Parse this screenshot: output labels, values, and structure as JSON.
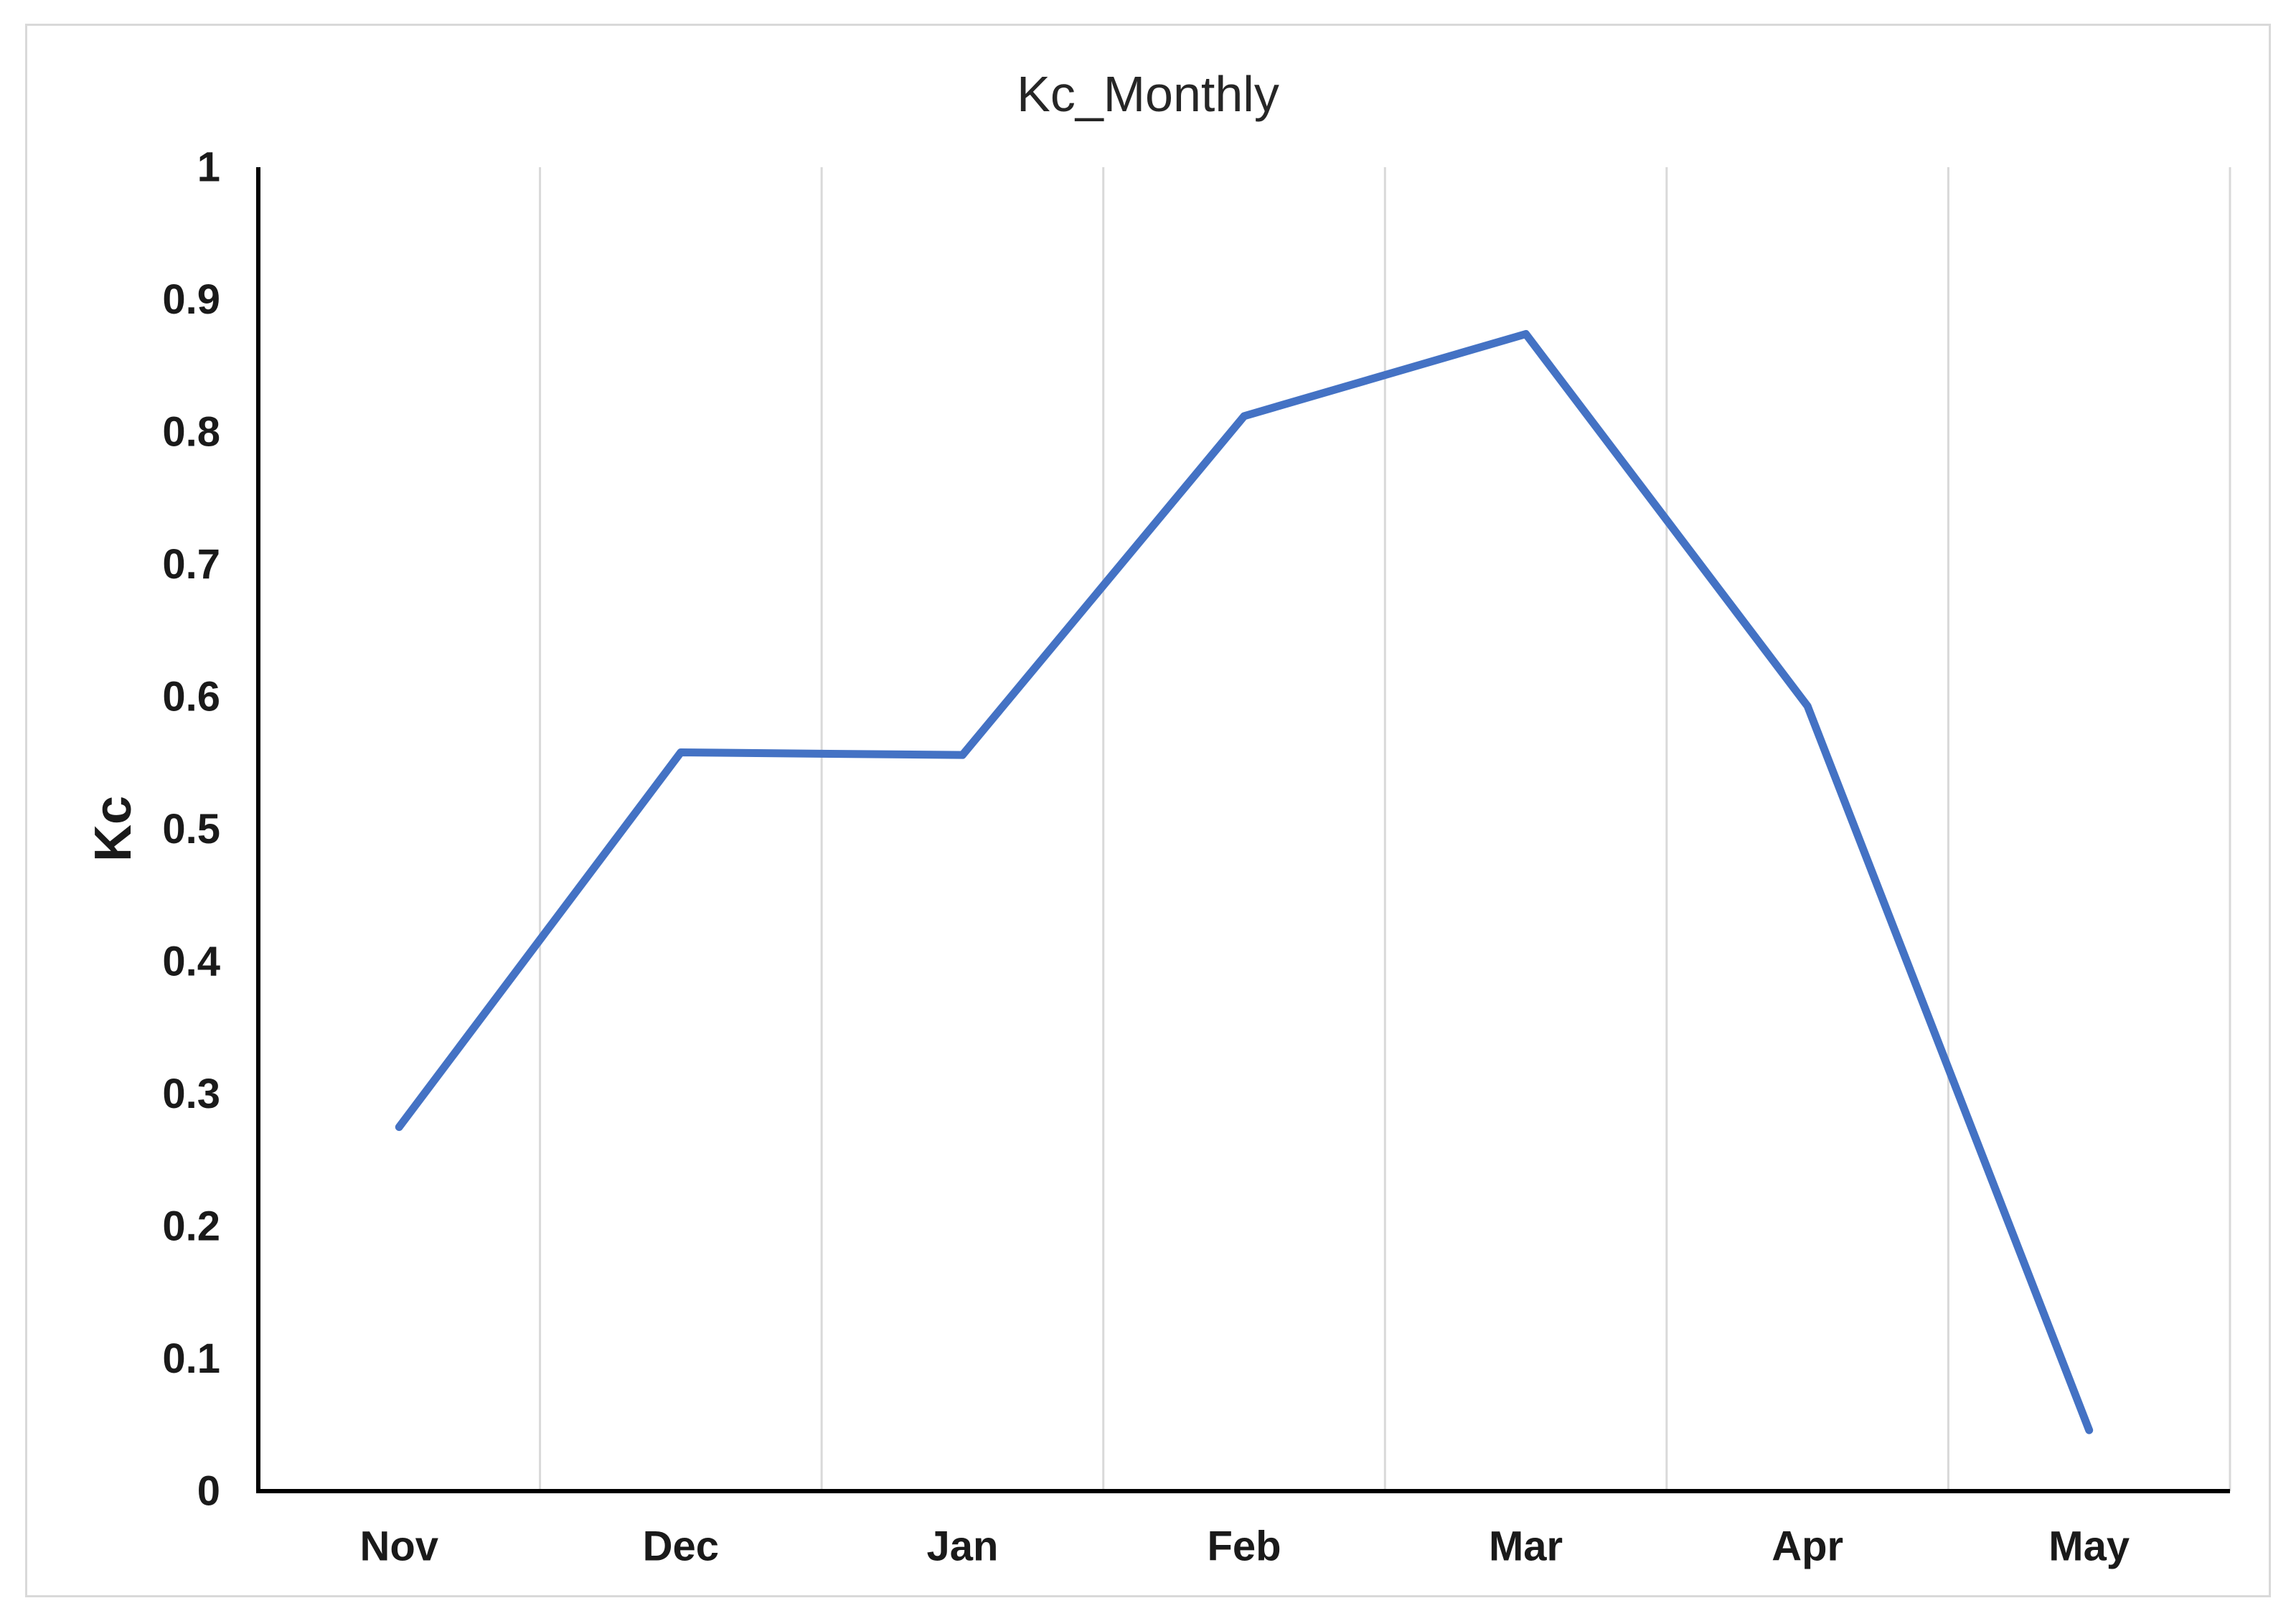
{
  "chart_data": {
    "type": "line",
    "title": "Kc_Monthly",
    "ylabel": "Kc",
    "xlabel": "",
    "categories": [
      "Nov",
      "Dec",
      "Jan",
      "Feb",
      "Mar",
      "Apr",
      "May"
    ],
    "series": [
      {
        "name": "Kc_Monthly",
        "values": [
          0.275,
          0.558,
          0.556,
          0.812,
          0.874,
          0.593,
          0.046
        ]
      }
    ],
    "ylim": [
      0,
      1
    ],
    "ytick_step": 0.1,
    "ytick_labels": [
      "0",
      "0.1",
      "0.2",
      "0.3",
      "0.4",
      "0.5",
      "0.6",
      "0.7",
      "0.8",
      "0.9",
      "1"
    ],
    "grid": "vertical-only",
    "legend_position": "none",
    "colors": {
      "line": "#4472C4",
      "gridline": "#D9D9D9",
      "axis": "#000000",
      "text": "#1a1a1a",
      "canvas_border": "#D9D9D9"
    }
  }
}
